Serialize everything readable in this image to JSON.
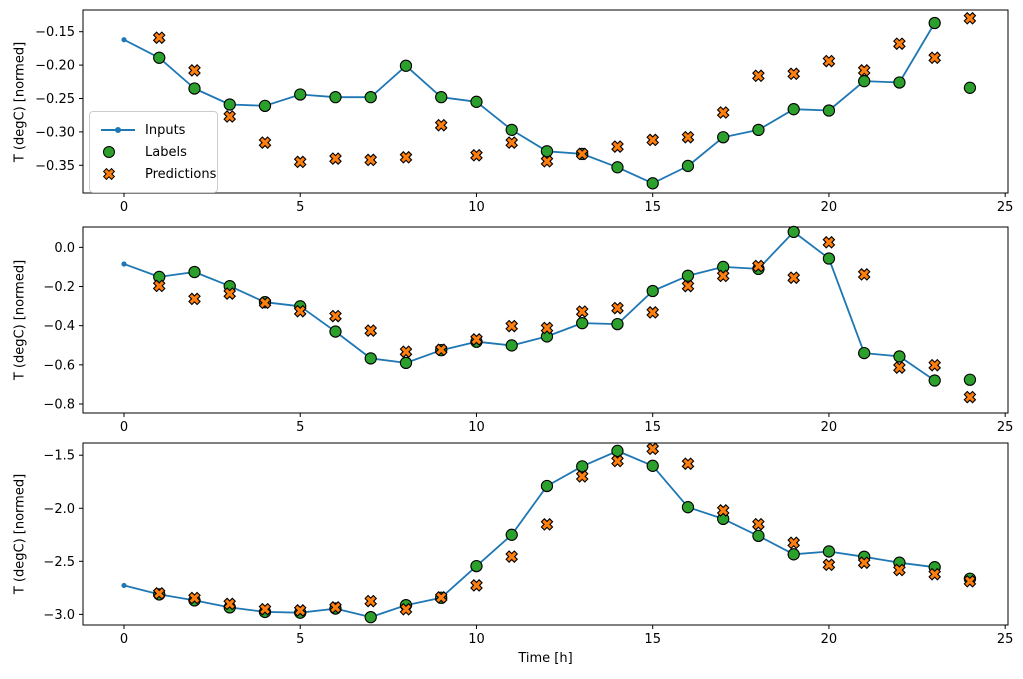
{
  "xlabel": "Time [h]",
  "ylabel": "T (degC) [normed]",
  "colors": {
    "inputs": "#1f77b4",
    "labels": "#2ca02c",
    "predictions": "#ff7f0e",
    "marker_edge": "#000000",
    "axis": "#000000",
    "legend_border": "#cccccc"
  },
  "legend": {
    "items": [
      {
        "label": "Inputs",
        "type": "line-dot"
      },
      {
        "label": "Labels",
        "type": "circle"
      },
      {
        "label": "Predictions",
        "type": "x"
      }
    ]
  },
  "x_axis": {
    "values": [
      0,
      5,
      10,
      15,
      20,
      25
    ],
    "labels": [
      "0",
      "5",
      "10",
      "15",
      "20",
      "25"
    ]
  },
  "chart_data": [
    {
      "type": "line",
      "name": "subplot-top",
      "ylabel": "T (degC) [normed]",
      "xlim": [
        -1.163,
        25.08
      ],
      "ylim": [
        -0.3915,
        -0.1175
      ],
      "grid": false,
      "legend_position": "upper-left-inside",
      "y_axis": {
        "values": [
          -0.15,
          -0.2,
          -0.25,
          -0.3,
          -0.35
        ],
        "labels": [
          "−0.15",
          "−0.20",
          "−0.25",
          "−0.30",
          "−0.35"
        ]
      },
      "series": [
        {
          "name": "Inputs",
          "x": [
            0,
            1,
            2,
            3,
            4,
            5,
            6,
            7,
            8,
            9,
            10,
            11,
            12,
            13,
            14,
            15,
            16,
            17,
            18,
            19,
            20,
            21,
            22,
            23
          ],
          "y": [
            -0.162,
            -0.189,
            -0.235,
            -0.259,
            -0.261,
            -0.244,
            -0.248,
            -0.248,
            -0.201,
            -0.248,
            -0.255,
            -0.297,
            -0.329,
            -0.333,
            -0.353,
            -0.377,
            -0.351,
            -0.308,
            -0.297,
            -0.266,
            -0.268,
            -0.224,
            -0.226,
            -0.137
          ]
        },
        {
          "name": "Labels",
          "x": [
            1,
            2,
            3,
            4,
            5,
            6,
            7,
            8,
            9,
            10,
            11,
            12,
            13,
            14,
            15,
            16,
            17,
            18,
            19,
            20,
            21,
            22,
            23,
            24
          ],
          "y": [
            -0.189,
            -0.235,
            -0.259,
            -0.261,
            -0.244,
            -0.248,
            -0.248,
            -0.201,
            -0.248,
            -0.255,
            -0.297,
            -0.329,
            -0.333,
            -0.353,
            -0.377,
            -0.351,
            -0.308,
            -0.297,
            -0.266,
            -0.268,
            -0.224,
            -0.226,
            -0.137,
            -0.234
          ]
        },
        {
          "name": "Predictions",
          "x": [
            1,
            2,
            3,
            4,
            5,
            6,
            7,
            8,
            9,
            10,
            11,
            12,
            13,
            14,
            15,
            16,
            17,
            18,
            19,
            20,
            21,
            22,
            23,
            24
          ],
          "y": [
            -0.159,
            -0.208,
            -0.277,
            -0.316,
            -0.345,
            -0.34,
            -0.342,
            -0.338,
            -0.29,
            -0.335,
            -0.316,
            -0.344,
            -0.333,
            -0.322,
            -0.312,
            -0.308,
            -0.271,
            -0.216,
            -0.213,
            -0.194,
            -0.208,
            -0.168,
            -0.189,
            -0.13
          ]
        }
      ]
    },
    {
      "type": "line",
      "name": "subplot-middle",
      "ylabel": "T (degC) [normed]",
      "xlim": [
        -1.163,
        25.08
      ],
      "ylim": [
        -0.846,
        0.104
      ],
      "grid": false,
      "y_axis": {
        "values": [
          0.0,
          -0.2,
          -0.4,
          -0.6,
          -0.8
        ],
        "labels": [
          "0.0",
          "−0.2",
          "−0.4",
          "−0.6",
          "−0.8"
        ]
      },
      "series": [
        {
          "name": "Inputs",
          "x": [
            0,
            1,
            2,
            3,
            4,
            5,
            6,
            7,
            8,
            9,
            10,
            11,
            12,
            13,
            14,
            15,
            16,
            17,
            18,
            19,
            20,
            21,
            22,
            23
          ],
          "y": [
            -0.085,
            -0.151,
            -0.126,
            -0.198,
            -0.28,
            -0.301,
            -0.43,
            -0.567,
            -0.59,
            -0.525,
            -0.482,
            -0.501,
            -0.455,
            -0.387,
            -0.392,
            -0.223,
            -0.145,
            -0.1,
            -0.11,
            0.079,
            -0.057,
            -0.54,
            -0.557,
            -0.68
          ]
        },
        {
          "name": "Labels",
          "x": [
            1,
            2,
            3,
            4,
            5,
            6,
            7,
            8,
            9,
            10,
            11,
            12,
            13,
            14,
            15,
            16,
            17,
            18,
            19,
            20,
            21,
            22,
            23,
            24
          ],
          "y": [
            -0.151,
            -0.126,
            -0.198,
            -0.28,
            -0.301,
            -0.43,
            -0.567,
            -0.59,
            -0.525,
            -0.482,
            -0.501,
            -0.455,
            -0.387,
            -0.392,
            -0.223,
            -0.145,
            -0.1,
            -0.11,
            0.079,
            -0.057,
            -0.54,
            -0.557,
            -0.68,
            -0.676
          ]
        },
        {
          "name": "Predictions",
          "x": [
            1,
            2,
            3,
            4,
            5,
            6,
            7,
            8,
            9,
            10,
            11,
            12,
            13,
            14,
            15,
            16,
            17,
            18,
            19,
            20,
            21,
            22,
            23,
            24
          ],
          "y": [
            -0.197,
            -0.263,
            -0.236,
            -0.283,
            -0.326,
            -0.351,
            -0.425,
            -0.533,
            -0.523,
            -0.47,
            -0.402,
            -0.412,
            -0.328,
            -0.31,
            -0.332,
            -0.198,
            -0.146,
            -0.095,
            -0.155,
            0.026,
            -0.138,
            -0.614,
            -0.602,
            -0.765
          ]
        }
      ]
    },
    {
      "type": "line",
      "name": "subplot-bottom",
      "ylabel": "T (degC) [normed]",
      "xlim": [
        -1.163,
        25.08
      ],
      "ylim": [
        -3.1,
        -1.385
      ],
      "grid": false,
      "y_axis": {
        "values": [
          -1.5,
          -2.0,
          -2.5,
          -3.0
        ],
        "labels": [
          "−1.5",
          "−2.0",
          "−2.5",
          "−3.0"
        ]
      },
      "series": [
        {
          "name": "Inputs",
          "x": [
            0,
            1,
            2,
            3,
            4,
            5,
            6,
            7,
            8,
            9,
            10,
            11,
            12,
            13,
            14,
            15,
            16,
            17,
            18,
            19,
            20,
            21,
            22,
            23
          ],
          "y": [
            -2.727,
            -2.812,
            -2.868,
            -2.934,
            -2.977,
            -2.984,
            -2.945,
            -3.026,
            -2.913,
            -2.843,
            -2.545,
            -2.25,
            -1.79,
            -1.605,
            -1.46,
            -1.6,
            -1.99,
            -2.1,
            -2.26,
            -2.434,
            -2.407,
            -2.457,
            -2.513,
            -2.555
          ]
        },
        {
          "name": "Labels",
          "x": [
            1,
            2,
            3,
            4,
            5,
            6,
            7,
            8,
            9,
            10,
            11,
            12,
            13,
            14,
            15,
            16,
            17,
            18,
            19,
            20,
            21,
            22,
            23,
            24
          ],
          "y": [
            -2.812,
            -2.868,
            -2.934,
            -2.977,
            -2.984,
            -2.945,
            -3.026,
            -2.913,
            -2.843,
            -2.545,
            -2.25,
            -1.79,
            -1.605,
            -1.46,
            -1.6,
            -1.99,
            -2.1,
            -2.26,
            -2.434,
            -2.407,
            -2.457,
            -2.513,
            -2.555,
            -2.664
          ]
        },
        {
          "name": "Predictions",
          "x": [
            1,
            2,
            3,
            4,
            5,
            6,
            7,
            8,
            9,
            10,
            11,
            12,
            13,
            14,
            15,
            16,
            17,
            18,
            19,
            20,
            21,
            22,
            23,
            24
          ],
          "y": [
            -2.802,
            -2.846,
            -2.901,
            -2.951,
            -2.962,
            -2.934,
            -2.875,
            -2.952,
            -2.84,
            -2.727,
            -2.455,
            -2.152,
            -1.7,
            -1.555,
            -1.44,
            -1.58,
            -2.02,
            -2.15,
            -2.325,
            -2.533,
            -2.513,
            -2.582,
            -2.621,
            -2.688
          ]
        }
      ]
    }
  ]
}
